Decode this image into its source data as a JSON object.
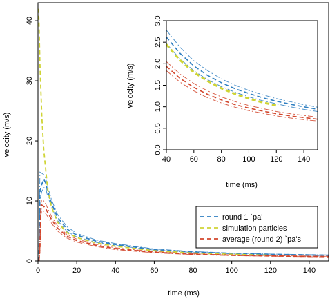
{
  "chart_data": [
    {
      "type": "line",
      "title": "",
      "xlabel": "time (ms)",
      "ylabel": "velocity (m/s)",
      "xlim": [
        0,
        150
      ],
      "ylim": [
        0,
        43
      ],
      "xticks": [
        0,
        20,
        40,
        60,
        80,
        100,
        120,
        140
      ],
      "yticks": [
        0,
        10,
        20,
        30,
        40
      ],
      "legend": {
        "position": "bottom-right",
        "entries": [
          {
            "label": "round 1 `pa'",
            "color": "#2f7fc1"
          },
          {
            "label": "simulation particles",
            "color": "#cfd435"
          },
          {
            "label": "average (round 2) `pa's",
            "color": "#d2452b"
          }
        ]
      },
      "series": [
        {
          "name": "round 1 `pa'",
          "color": "#2f7fc1",
          "style": "dashed",
          "x": [
            0.5,
            1,
            2,
            3,
            4,
            5,
            7,
            10,
            15,
            20,
            30,
            40,
            60,
            80,
            100,
            120,
            150
          ],
          "y": [
            0,
            11.5,
            12.8,
            13.6,
            13.0,
            11.6,
            9.6,
            7.3,
            5.3,
            4.3,
            3.3,
            2.75,
            1.9,
            1.5,
            1.25,
            1.1,
            0.95
          ],
          "band": {
            "upper": [
              0,
              14.8,
              14.6,
              14.4,
              13.8,
              12.4,
              10.2,
              7.8,
              5.7,
              4.6,
              3.5,
              2.9,
              2.0,
              1.58,
              1.32,
              1.15,
              1.0
            ],
            "lower": [
              0,
              10.2,
              11.6,
              12.2,
              12.1,
              10.8,
              9.0,
              6.8,
              4.9,
              4.0,
              3.1,
              2.6,
              1.8,
              1.42,
              1.18,
              1.03,
              0.88
            ]
          }
        },
        {
          "name": "simulation particles",
          "color": "#cfd435",
          "style": "dashed",
          "x": [
            0.2,
            0.5,
            1,
            2,
            3,
            5,
            7,
            10,
            15,
            20,
            30,
            40,
            60,
            80,
            100,
            120
          ],
          "y": [
            42.0,
            40.0,
            33.0,
            24.0,
            18.5,
            12.0,
            9.0,
            6.5,
            4.7,
            3.9,
            3.0,
            2.45,
            1.7,
            1.32,
            1.1,
            0.95
          ]
        },
        {
          "name": "average (round 2) `pa's",
          "color": "#d2452b",
          "style": "dashed",
          "x": [
            0.5,
            1,
            1.5,
            2,
            3,
            4,
            5,
            7,
            10,
            15,
            20,
            30,
            40,
            60,
            80,
            100,
            120,
            150
          ],
          "y": [
            0,
            2.0,
            8.5,
            9.3,
            9.1,
            8.7,
            8.1,
            6.9,
            5.5,
            4.1,
            3.4,
            2.6,
            2.05,
            1.45,
            1.13,
            0.95,
            0.83,
            0.72
          ],
          "band": {
            "upper": [
              0,
              3.0,
              9.5,
              10.2,
              10.0,
              9.5,
              8.8,
              7.4,
              5.9,
              4.4,
              3.65,
              2.78,
              2.2,
              1.55,
              1.2,
              1.01,
              0.88,
              0.77
            ],
            "lower": [
              0,
              1.2,
              7.6,
              8.4,
              8.3,
              7.9,
              7.4,
              6.3,
              5.0,
              3.8,
              3.15,
              2.42,
              1.9,
              1.36,
              1.06,
              0.89,
              0.78,
              0.67
            ]
          }
        }
      ]
    },
    {
      "type": "line",
      "title": "",
      "xlabel": "time (ms)",
      "ylabel": "velocity (m/s)",
      "xlim": [
        40,
        150
      ],
      "ylim": [
        0,
        3.0
      ],
      "xticks": [
        40,
        60,
        80,
        100,
        120,
        140
      ],
      "yticks": [
        0.0,
        0.5,
        1.0,
        1.5,
        2.0,
        2.5,
        3.0
      ],
      "series": [
        {
          "name": "round 1 `pa'",
          "color": "#2f7fc1",
          "style": "dashed",
          "x": [
            40,
            50,
            60,
            70,
            80,
            90,
            100,
            110,
            120,
            130,
            140,
            150
          ],
          "y": [
            2.62,
            2.24,
            1.95,
            1.73,
            1.56,
            1.42,
            1.31,
            1.21,
            1.13,
            1.06,
            1.0,
            0.94
          ],
          "band": {
            "upper": [
              2.78,
              2.38,
              2.07,
              1.84,
              1.65,
              1.5,
              1.38,
              1.28,
              1.19,
              1.12,
              1.05,
              0.99
            ],
            "lower": [
              2.47,
              2.11,
              1.84,
              1.63,
              1.47,
              1.34,
              1.23,
              1.14,
              1.07,
              1.0,
              0.94,
              0.89
            ]
          }
        },
        {
          "name": "simulation particles",
          "color": "#cfd435",
          "style": "dashed",
          "x": [
            40,
            50,
            60,
            70,
            80,
            90,
            100,
            110,
            120
          ],
          "y": [
            2.45,
            2.08,
            1.8,
            1.6,
            1.43,
            1.3,
            1.19,
            1.1,
            1.03
          ]
        },
        {
          "name": "average (round 2) `pa's",
          "color": "#d2452b",
          "style": "dashed",
          "x": [
            40,
            50,
            60,
            70,
            80,
            90,
            100,
            110,
            120,
            130,
            140,
            150
          ],
          "y": [
            1.94,
            1.66,
            1.45,
            1.29,
            1.16,
            1.05,
            0.97,
            0.9,
            0.84,
            0.79,
            0.75,
            0.71
          ],
          "band": {
            "upper": [
              2.05,
              1.76,
              1.54,
              1.37,
              1.23,
              1.12,
              1.03,
              0.96,
              0.89,
              0.84,
              0.8,
              0.76
            ],
            "lower": [
              1.84,
              1.57,
              1.37,
              1.21,
              1.09,
              0.99,
              0.91,
              0.85,
              0.79,
              0.74,
              0.7,
              0.67
            ]
          }
        }
      ]
    }
  ]
}
